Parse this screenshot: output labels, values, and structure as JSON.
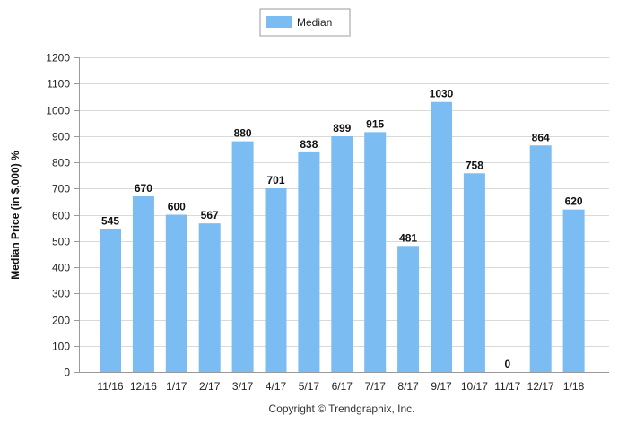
{
  "chart_data": {
    "type": "bar",
    "categories": [
      "11/16",
      "12/16",
      "1/17",
      "2/17",
      "3/17",
      "4/17",
      "5/17",
      "6/17",
      "7/17",
      "8/17",
      "9/17",
      "10/17",
      "11/17",
      "12/17",
      "1/18"
    ],
    "series": [
      {
        "name": "Median",
        "values": [
          545,
          670,
          600,
          567,
          880,
          701,
          838,
          899,
          915,
          481,
          1030,
          758,
          0,
          864,
          620
        ],
        "color": "#7bbcf3"
      }
    ],
    "data_labels": [
      "545",
      "670",
      "600",
      "567",
      "880",
      "701",
      "838",
      "899",
      "915",
      "481",
      "1030",
      "758",
      "0",
      "864",
      "620"
    ],
    "ylabel": "Median Price (in $,000) %",
    "xlabel": "",
    "title": "",
    "ylim": [
      0,
      1200
    ],
    "yticks": [
      0,
      100,
      200,
      300,
      400,
      500,
      600,
      700,
      800,
      900,
      1000,
      1100,
      1200
    ],
    "grid": true,
    "legend": "top-center"
  },
  "copyright": "Copyright © Trendgraphix, Inc."
}
